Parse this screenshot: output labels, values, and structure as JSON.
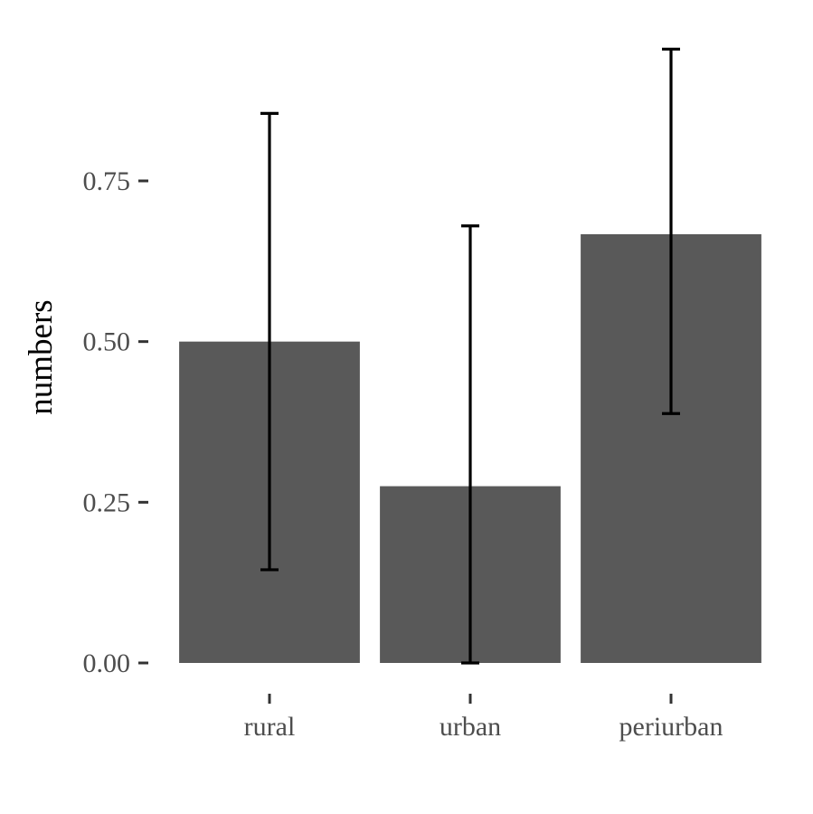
{
  "chart_data": {
    "type": "bar",
    "title": "",
    "xlabel": "",
    "ylabel": "numbers",
    "categories": [
      "rural",
      "urban",
      "periurban"
    ],
    "values": [
      0.5,
      0.275,
      0.667
    ],
    "error_lower": [
      0.145,
      0.0,
      0.388
    ],
    "error_upper": [
      0.855,
      0.68,
      0.955
    ],
    "ylim": [
      0,
      1
    ],
    "yticks": [
      0.0,
      0.25,
      0.5,
      0.75
    ],
    "ytick_labels": [
      "0.00",
      "0.25",
      "0.50",
      "0.75"
    ],
    "grid": false,
    "legend": "none",
    "bar_color": "#595959",
    "errorbar_color": "#000000"
  }
}
